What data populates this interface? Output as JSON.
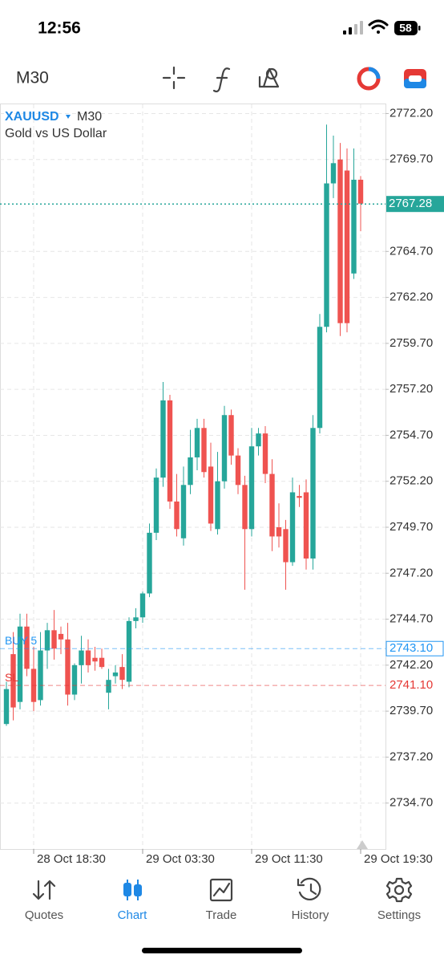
{
  "status_bar": {
    "time": "12:56",
    "battery": "58"
  },
  "toolbar": {
    "timeframe": "M30"
  },
  "chart_data": {
    "type": "candlestick",
    "symbol": "XAUUSD",
    "timeframe": "M30",
    "description": "Gold vs US Dollar",
    "categories": [
      null,
      null,
      null,
      null,
      "28 Oct 18:30",
      null,
      null,
      null,
      null,
      null,
      null,
      null,
      null,
      null,
      null,
      null,
      null,
      null,
      null,
      null,
      "29 Oct 03:30",
      null,
      null,
      null,
      null,
      null,
      null,
      null,
      null,
      null,
      null,
      null,
      null,
      null,
      null,
      null,
      "29 Oct 11:30",
      null,
      null,
      null,
      null,
      null,
      null,
      null,
      null,
      null,
      null,
      null,
      null,
      null,
      null,
      null,
      "29 Oct 19:30"
    ],
    "open": [
      2739.0,
      2742.8,
      2740.2,
      2744.3,
      2742.0,
      2740.3,
      2743.0,
      2744.1,
      2743.9,
      2743.6,
      2740.6,
      2742.2,
      2743.0,
      2742.6,
      2742.6,
      2740.7,
      2741.6,
      2742.1,
      2741.3,
      2744.6,
      2744.8,
      2746.1,
      2749.4,
      2752.4,
      2756.6,
      2751.1,
      2749.1,
      2752.0,
      2753.5,
      2755.1,
      2753.0,
      2749.6,
      2752.2,
      2755.8,
      2753.6,
      2752.0,
      2749.6,
      2754.1,
      2754.8,
      2752.6,
      2749.7,
      2749.6,
      2747.8,
      2751.4,
      2751.6,
      2748.0,
      2755.1,
      2760.6,
      2768.4,
      2769.7,
      2769.1,
      2763.5,
      2768.6
    ],
    "high": [
      2741.3,
      2744.0,
      2745.0,
      2745.0,
      2743.2,
      2744.0,
      2744.5,
      2745.2,
      2744.3,
      2744.5,
      2742.3,
      2743.8,
      2743.6,
      2743.2,
      2743.1,
      2742.0,
      2742.2,
      2742.8,
      2744.8,
      2745.3,
      2746.2,
      2749.9,
      2752.9,
      2757.6,
      2756.9,
      2752.6,
      2753.0,
      2755.0,
      2755.6,
      2755.6,
      2754.3,
      2753.8,
      2756.3,
      2756.1,
      2754.0,
      2752.5,
      2755.1,
      2755.1,
      2755.2,
      2753.4,
      2751.0,
      2750.1,
      2752.4,
      2752.0,
      2752.3,
      2755.8,
      2761.3,
      2771.6,
      2771.0,
      2770.6,
      2770.3,
      2770.3,
      2768.8
    ],
    "low": [
      2738.9,
      2739.2,
      2739.8,
      2741.6,
      2739.7,
      2740.0,
      2742.0,
      2742.5,
      2742.8,
      2740.0,
      2740.3,
      2741.2,
      2741.8,
      2741.9,
      2742.0,
      2739.8,
      2741.2,
      2740.9,
      2741.0,
      2744.2,
      2744.5,
      2745.9,
      2749.0,
      2751.9,
      2750.7,
      2749.2,
      2748.7,
      2751.5,
      2752.8,
      2752.4,
      2749.5,
      2749.3,
      2751.8,
      2753.1,
      2751.5,
      2746.3,
      2749.2,
      2753.6,
      2752.1,
      2748.4,
      2748.6,
      2746.3,
      2747.6,
      2750.8,
      2747.4,
      2747.4,
      2754.8,
      2760.3,
      2767.6,
      2760.1,
      2760.3,
      2763.2,
      2765.8
    ],
    "close": [
      2740.9,
      2739.9,
      2744.3,
      2742.0,
      2740.2,
      2743.0,
      2744.1,
      2743.1,
      2743.6,
      2740.6,
      2742.2,
      2743.0,
      2742.2,
      2742.4,
      2742.1,
      2741.4,
      2741.8,
      2741.4,
      2744.6,
      2744.8,
      2746.1,
      2749.4,
      2752.4,
      2756.6,
      2751.1,
      2749.6,
      2752.0,
      2753.5,
      2755.1,
      2752.7,
      2749.9,
      2752.2,
      2755.8,
      2753.6,
      2752.0,
      2749.6,
      2754.1,
      2754.8,
      2752.6,
      2749.2,
      2749.2,
      2747.8,
      2751.6,
      2751.3,
      2748.0,
      2755.1,
      2760.6,
      2768.4,
      2769.5,
      2760.8,
      2760.8,
      2768.6,
      2767.3
    ],
    "up_color": "#26a69a",
    "down_color": "#ef5350",
    "ylim": [
      2732.2,
      2772.7
    ],
    "yticks": [
      {
        "value": 2772.2,
        "label": "2772.20"
      },
      {
        "value": 2769.7,
        "label": "2769.70"
      },
      {
        "value": 2764.7,
        "label": "2764.70"
      },
      {
        "value": 2762.2,
        "label": "2762.20"
      },
      {
        "value": 2759.7,
        "label": "2759.70"
      },
      {
        "value": 2757.2,
        "label": "2757.20"
      },
      {
        "value": 2754.7,
        "label": "2754.70"
      },
      {
        "value": 2752.2,
        "label": "2752.20"
      },
      {
        "value": 2749.7,
        "label": "2749.70"
      },
      {
        "value": 2747.2,
        "label": "2747.20"
      },
      {
        "value": 2744.7,
        "label": "2744.70"
      },
      {
        "value": 2742.2,
        "label": "2742.20"
      },
      {
        "value": 2739.7,
        "label": "2739.70"
      },
      {
        "value": 2737.2,
        "label": "2737.20"
      },
      {
        "value": 2734.7,
        "label": "2734.70"
      }
    ],
    "grid": true,
    "current_price": 2767.28,
    "current_price_color": "#26a69a",
    "price_lines": [
      {
        "name": "BUY 5",
        "value": 2743.1,
        "label": "2743.10",
        "color": "#2196f3"
      },
      {
        "name": "SL",
        "value": 2741.1,
        "label": "2741.10",
        "color": "#e53935"
      }
    ]
  },
  "nav": {
    "items": [
      "Quotes",
      "Chart",
      "Trade",
      "History",
      "Settings"
    ],
    "active": "Chart"
  }
}
